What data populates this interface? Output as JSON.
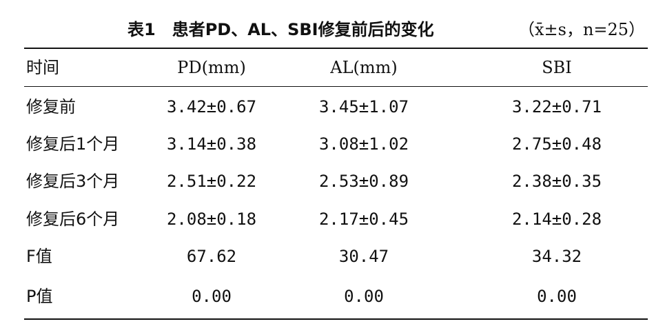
{
  "table": {
    "title": "表1　患者PD、AL、SBI修复前后的变化",
    "note": "（x̄±s，n=25）",
    "header": [
      "时间",
      "PD(mm)",
      "AL(mm)",
      "SBI"
    ],
    "rows": [
      [
        "修复前",
        "3.42±0.67",
        "3.45±1.07",
        "3.22±0.71"
      ],
      [
        "修复后1个月",
        "3.14±0.38",
        "3.08±1.02",
        "2.75±0.48"
      ],
      [
        "修复后3个月",
        "2.51±0.22",
        "2.53±0.89",
        "2.38±0.35"
      ],
      [
        "修复后6个月",
        "2.08±0.18",
        "2.17±0.45",
        "2.14±0.28"
      ],
      [
        "F值",
        "67.62",
        "30.47",
        "34.32"
      ],
      [
        "P值",
        "0.00",
        "0.00",
        "0.00"
      ]
    ]
  }
}
